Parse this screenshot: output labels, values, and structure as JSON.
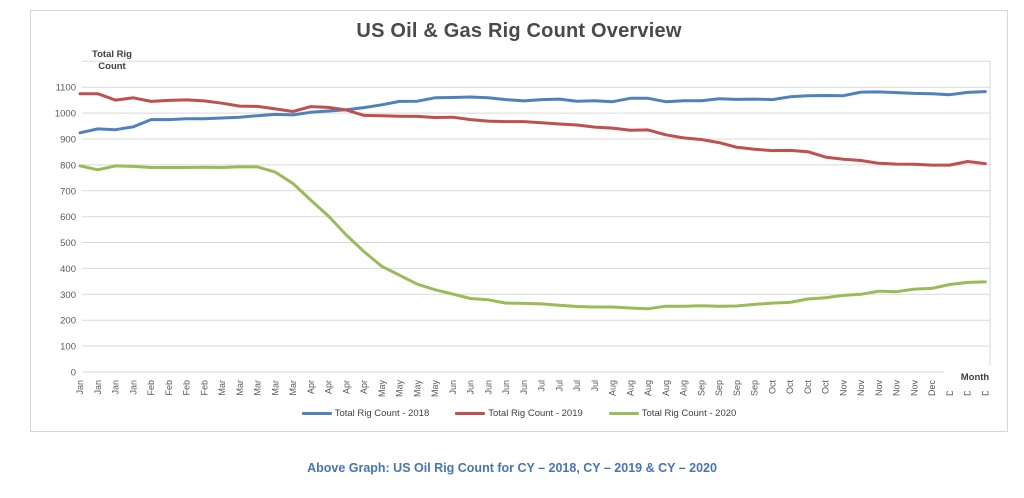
{
  "title": "US Oil & Gas Rig Count Overview",
  "caption": "Above Graph: US Oil Rig Count for CY – 2018, CY – 2019 & CY – 2020",
  "y_axis": {
    "title_line1": "Total Rig",
    "title_line2": "Count",
    "ticks": [
      0,
      100,
      200,
      300,
      400,
      500,
      600,
      700,
      800,
      900,
      1000,
      1100
    ]
  },
  "x_axis": {
    "title": "Month"
  },
  "colors": {
    "grid": "#d9d9d9",
    "tick_text": "#595959"
  },
  "chart_data": {
    "type": "line",
    "title": "US Oil & Gas Rig Count Overview",
    "xlabel": "Month",
    "ylabel": "Total Rig Count",
    "ylim": [
      0,
      1200
    ],
    "ytick_step": 100,
    "grid": true,
    "legend_position": "bottom",
    "x": [
      "Jan",
      "Jan",
      "Jan",
      "Jan",
      "Feb",
      "Feb",
      "Feb",
      "Feb",
      "Mar",
      "Mar",
      "Mar",
      "Mar",
      "Mar",
      "Apr",
      "Apr",
      "Apr",
      "Apr",
      "May",
      "May",
      "May",
      "May",
      "Jun",
      "Jun",
      "Jun",
      "Jun",
      "Jun",
      "Jul",
      "Jul",
      "Jul",
      "Jul",
      "Aug",
      "Aug",
      "Aug",
      "Aug",
      "Aug",
      "Sep",
      "Sep",
      "Sep",
      "Sep",
      "Oct",
      "Oct",
      "Oct",
      "Oct",
      "Nov",
      "Nov",
      "Nov",
      "Nov",
      "Nov",
      "Dec",
      "Dec",
      "Dec",
      "Dec"
    ],
    "series": [
      {
        "name": "Total Rig Count - 2018",
        "color": "#4F81BD",
        "values": [
          924,
          939,
          936,
          947,
          975,
          975,
          978,
          978,
          981,
          984,
          990,
          995,
          993,
          1003,
          1008,
          1013,
          1021,
          1032,
          1045,
          1046,
          1059,
          1060,
          1062,
          1059,
          1052,
          1047,
          1052,
          1054,
          1046,
          1048,
          1044,
          1057,
          1057,
          1044,
          1048,
          1048,
          1055,
          1053,
          1054,
          1052,
          1063,
          1067,
          1068,
          1067,
          1081,
          1082,
          1079,
          1076,
          1075,
          1071,
          1080,
          1083
        ]
      },
      {
        "name": "Total Rig Count - 2019",
        "color": "#C0504D",
        "values": [
          1075,
          1075,
          1050,
          1059,
          1045,
          1049,
          1051,
          1047,
          1038,
          1027,
          1026,
          1016,
          1006,
          1025,
          1022,
          1012,
          991,
          990,
          988,
          987,
          983,
          984,
          975,
          969,
          967,
          967,
          963,
          958,
          954,
          946,
          942,
          934,
          935,
          916,
          904,
          898,
          886,
          868,
          860,
          855,
          856,
          851,
          830,
          822,
          817,
          806,
          803,
          802,
          799,
          799,
          813,
          805
        ]
      },
      {
        "name": "Total Rig Count - 2020",
        "color": "#9BBB59",
        "values": [
          796,
          781,
          796,
          794,
          790,
          790,
          790,
          791,
          790,
          793,
          792,
          772,
          728,
          664,
          602,
          529,
          465,
          408,
          374,
          339,
          318,
          301,
          284,
          279,
          266,
          265,
          263,
          258,
          253,
          251,
          251,
          247,
          244,
          254,
          254,
          256,
          254,
          255,
          261,
          266,
          269,
          282,
          287,
          296,
          300,
          312,
          310,
          320,
          323,
          338,
          346,
          348
        ]
      }
    ]
  }
}
